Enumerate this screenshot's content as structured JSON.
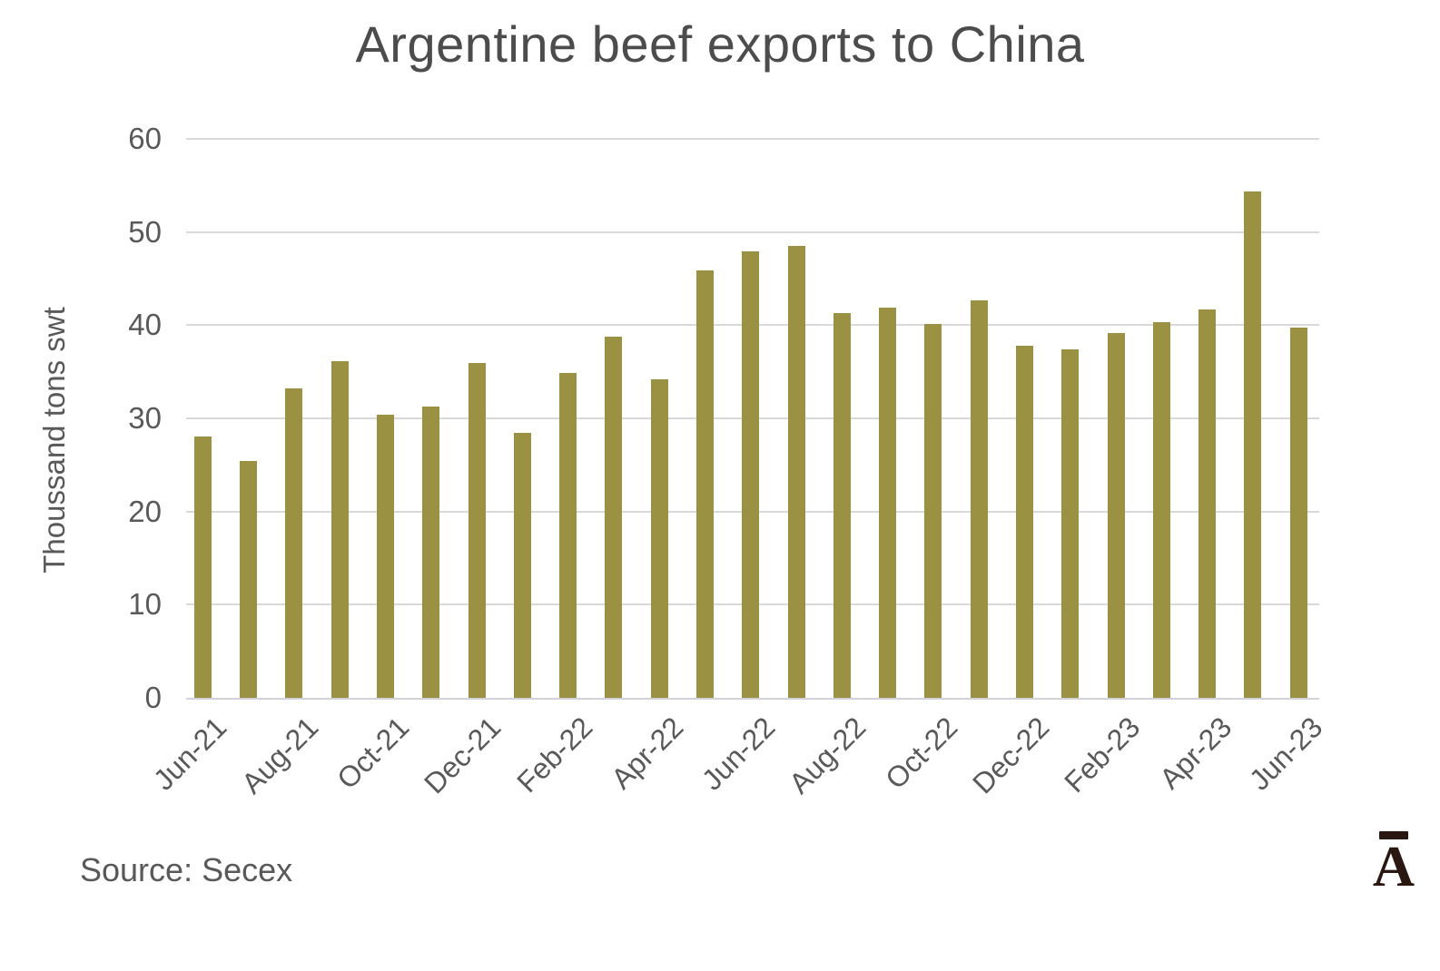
{
  "title": "Argentine beef exports to China",
  "y_axis": {
    "label": "Thoussand tons swt",
    "ticks": [
      "0",
      "10",
      "20",
      "30",
      "40",
      "50",
      "60"
    ]
  },
  "x_axis": {
    "visible_labels": [
      "Jun-21",
      "Aug-21",
      "Oct-21",
      "Dec-21",
      "Feb-22",
      "Apr-22",
      "Jun-22",
      "Aug-22",
      "Oct-22",
      "Dec-22",
      "Feb-23",
      "Apr-23",
      "Jun-23"
    ]
  },
  "source": "Source: Secex",
  "logo": {
    "letter": "A",
    "macron": true
  },
  "colors": {
    "bar": "#9a9143",
    "gridline": "#d9d9d9",
    "axis_text": "#595959",
    "title_text": "#4c4c4c",
    "logo": "#2a1711"
  },
  "chart_data": {
    "type": "bar",
    "categories": [
      "Jun-21",
      "Jul-21",
      "Aug-21",
      "Sep-21",
      "Oct-21",
      "Nov-21",
      "Dec-21",
      "Jan-22",
      "Feb-22",
      "Mar-22",
      "Apr-22",
      "May-22",
      "Jun-22",
      "Jul-22",
      "Aug-22",
      "Sep-22",
      "Oct-22",
      "Nov-22",
      "Dec-22",
      "Jan-23",
      "Feb-23",
      "Mar-23",
      "Apr-23",
      "May-23",
      "Jun-23"
    ],
    "values": [
      28.1,
      25.4,
      33.2,
      36.1,
      30.4,
      31.3,
      35.9,
      28.4,
      34.9,
      38.8,
      34.2,
      45.9,
      47.9,
      48.5,
      41.3,
      41.9,
      40.1,
      42.7,
      37.8,
      37.4,
      39.2,
      40.3,
      41.7,
      54.4,
      39.7
    ],
    "title": "Argentine beef exports to China",
    "xlabel": "",
    "ylabel": "Thoussand tons swt",
    "ylim": [
      0,
      60
    ],
    "ytick_step": 10,
    "grid": "horizontal",
    "legend": false,
    "x_tick_label_every": 2,
    "x_tick_rotation_deg": -45
  }
}
